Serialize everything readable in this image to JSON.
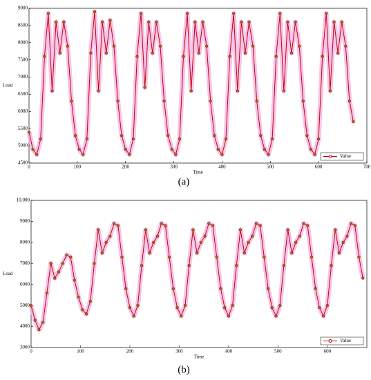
{
  "chart_data": [
    {
      "type": "line",
      "caption": "(a)",
      "xlabel": "Time",
      "ylabel": "Load",
      "x": [
        0,
        8,
        16,
        24,
        32,
        40,
        48,
        56,
        64,
        72,
        80,
        88,
        96,
        104,
        112,
        120,
        128,
        136,
        144,
        152,
        160,
        168,
        176,
        184,
        192,
        200,
        208,
        216,
        224,
        232,
        240,
        248,
        256,
        264,
        272,
        280,
        288,
        296,
        304,
        312,
        320,
        328,
        336,
        344,
        352,
        360,
        368,
        376,
        384,
        392,
        400,
        408,
        416,
        424,
        432,
        440,
        448,
        456,
        464,
        472,
        480,
        488,
        496,
        504,
        512,
        520,
        528,
        536,
        544,
        552,
        560,
        568,
        576,
        584,
        592,
        600,
        608,
        616,
        624,
        632,
        640,
        648,
        656,
        664,
        672
      ],
      "series": [
        {
          "name": "Value",
          "color": "#cc0000",
          "values": [
            5400,
            4900,
            4750,
            5200,
            7600,
            8850,
            6600,
            8600,
            7700,
            8600,
            7900,
            6300,
            5300,
            4900,
            4750,
            5200,
            7700,
            8900,
            6600,
            8600,
            7700,
            8650,
            7900,
            6300,
            5300,
            4900,
            4750,
            5200,
            7600,
            8850,
            6700,
            8600,
            7700,
            8600,
            7900,
            6300,
            5300,
            4900,
            4750,
            5200,
            7600,
            8850,
            6600,
            8600,
            7700,
            8600,
            7900,
            6300,
            5300,
            4900,
            4750,
            5200,
            7600,
            8850,
            6600,
            8600,
            7700,
            8600,
            7900,
            6300,
            5300,
            4900,
            4750,
            5200,
            7600,
            8850,
            6600,
            8600,
            7700,
            8600,
            7900,
            6300,
            5300,
            4900,
            4750,
            5200,
            7600,
            8850,
            6600,
            8600,
            7700,
            8600,
            7900,
            6300,
            5700
          ]
        }
      ],
      "xlim": [
        0,
        700
      ],
      "xticks": [
        0,
        100,
        200,
        300,
        400,
        500,
        600,
        700
      ],
      "ylim": [
        4500,
        9000
      ],
      "yticks": [
        4500,
        5000,
        5500,
        6000,
        6500,
        7000,
        7500,
        8000,
        8500,
        9000
      ],
      "legend": "lower right"
    },
    {
      "type": "line",
      "caption": "(b)",
      "xlabel": "Time",
      "ylabel": "Load",
      "x": [
        0,
        8,
        16,
        24,
        32,
        40,
        48,
        56,
        64,
        72,
        80,
        88,
        96,
        104,
        112,
        120,
        128,
        136,
        144,
        152,
        160,
        168,
        176,
        184,
        192,
        200,
        208,
        216,
        224,
        232,
        240,
        248,
        256,
        264,
        272,
        280,
        288,
        296,
        304,
        312,
        320,
        328,
        336,
        344,
        352,
        360,
        368,
        376,
        384,
        392,
        400,
        408,
        416,
        424,
        432,
        440,
        448,
        456,
        464,
        472,
        480,
        488,
        496,
        504,
        512,
        520,
        528,
        536,
        544,
        552,
        560,
        568,
        576,
        584,
        592,
        600,
        608,
        616,
        624,
        632,
        640,
        648,
        656,
        664,
        672
      ],
      "series": [
        {
          "name": "Value",
          "color": "#cc0000",
          "values": [
            5000,
            4300,
            3850,
            4200,
            5600,
            7000,
            6300,
            6600,
            7000,
            7400,
            7300,
            6200,
            5400,
            4800,
            4600,
            5200,
            7000,
            8600,
            7500,
            8000,
            8300,
            8900,
            8800,
            7300,
            5800,
            4900,
            4500,
            5000,
            6900,
            8600,
            7500,
            8000,
            8300,
            8900,
            8800,
            7300,
            5800,
            4900,
            4500,
            5000,
            6900,
            8600,
            7500,
            8000,
            8300,
            8900,
            8800,
            7300,
            5800,
            4900,
            4500,
            5000,
            6900,
            8600,
            7500,
            8000,
            8300,
            8900,
            8800,
            7300,
            5800,
            4900,
            4500,
            5000,
            6900,
            8600,
            7500,
            8000,
            8300,
            8900,
            8800,
            7300,
            5800,
            4900,
            4500,
            5000,
            6900,
            8600,
            7500,
            8000,
            8300,
            8900,
            8800,
            7300,
            6300
          ]
        }
      ],
      "xlim": [
        0,
        680
      ],
      "xticks": [
        0,
        100,
        200,
        300,
        400,
        500,
        600
      ],
      "ylim": [
        3000,
        10000
      ],
      "yticks": [
        3000,
        4000,
        5000,
        6000,
        7000,
        8000,
        9000,
        {
          "value": 10000,
          "label": "10.000"
        }
      ],
      "legend": "lower right"
    }
  ]
}
